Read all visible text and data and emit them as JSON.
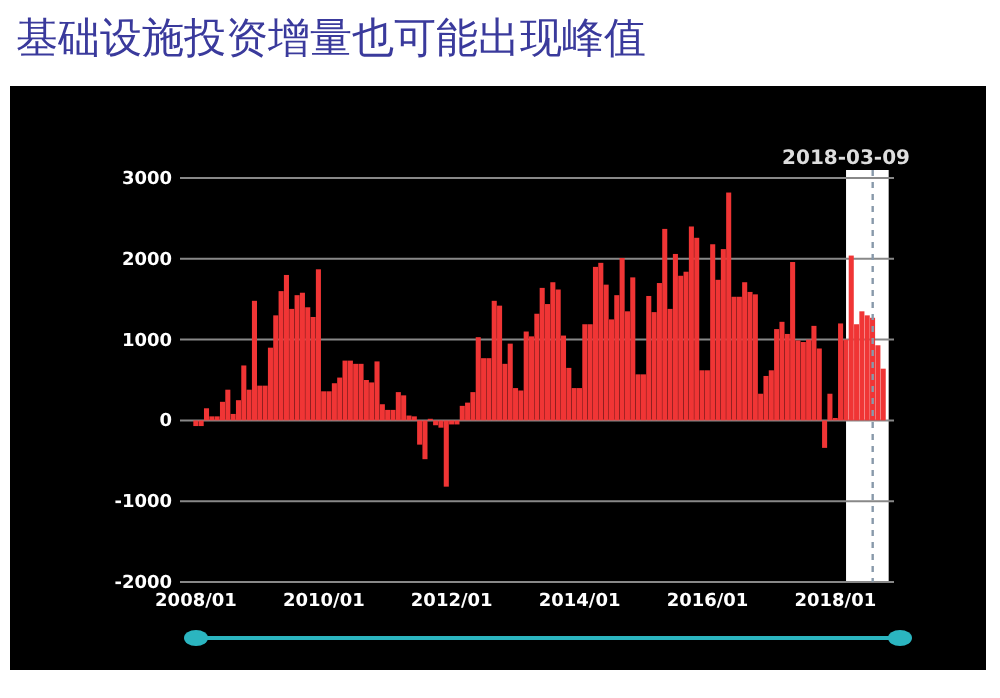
{
  "chart_data": {
    "type": "bar",
    "title": "基础设施投资增量也可能出现峰值",
    "x": [
      "2008-01",
      "2008-02",
      "2008-03",
      "2008-04",
      "2008-05",
      "2008-06",
      "2008-07",
      "2008-08",
      "2008-09",
      "2008-10",
      "2008-11",
      "2008-12",
      "2009-01",
      "2009-02",
      "2009-03",
      "2009-04",
      "2009-05",
      "2009-06",
      "2009-07",
      "2009-08",
      "2009-09",
      "2009-10",
      "2009-11",
      "2009-12",
      "2010-01",
      "2010-02",
      "2010-03",
      "2010-04",
      "2010-05",
      "2010-06",
      "2010-07",
      "2010-08",
      "2010-09",
      "2010-10",
      "2010-11",
      "2010-12",
      "2011-01",
      "2011-02",
      "2011-03",
      "2011-04",
      "2011-05",
      "2011-06",
      "2011-07",
      "2011-08",
      "2011-09",
      "2011-10",
      "2011-11",
      "2011-12",
      "2012-01",
      "2012-02",
      "2012-03",
      "2012-04",
      "2012-05",
      "2012-06",
      "2012-07",
      "2012-08",
      "2012-09",
      "2012-10",
      "2012-11",
      "2012-12",
      "2013-01",
      "2013-02",
      "2013-03",
      "2013-04",
      "2013-05",
      "2013-06",
      "2013-07",
      "2013-08",
      "2013-09",
      "2013-10",
      "2013-11",
      "2013-12",
      "2014-01",
      "2014-02",
      "2014-03",
      "2014-04",
      "2014-05",
      "2014-06",
      "2014-07",
      "2014-08",
      "2014-09",
      "2014-10",
      "2014-11",
      "2014-12",
      "2015-01",
      "2015-02",
      "2015-03",
      "2015-04",
      "2015-05",
      "2015-06",
      "2015-07",
      "2015-08",
      "2015-09",
      "2015-10",
      "2015-11",
      "2015-12",
      "2016-01",
      "2016-02",
      "2016-03",
      "2016-04",
      "2016-05",
      "2016-06",
      "2016-07",
      "2016-08",
      "2016-09",
      "2016-10",
      "2016-11",
      "2016-12",
      "2017-01",
      "2017-02",
      "2017-03",
      "2017-04",
      "2017-05",
      "2017-06",
      "2017-07",
      "2017-08",
      "2017-09",
      "2017-10",
      "2017-11",
      "2017-12",
      "2018-01",
      "2018-02",
      "2018-03",
      "2018-04",
      "2018-05",
      "2018-06",
      "2018-07",
      "2018-08",
      "2018-09",
      "2018-10"
    ],
    "values": [
      -70,
      -70,
      150,
      50,
      50,
      230,
      380,
      80,
      250,
      680,
      380,
      1480,
      430,
      430,
      900,
      1300,
      1600,
      1800,
      1380,
      1550,
      1580,
      1400,
      1280,
      1870,
      360,
      360,
      460,
      530,
      740,
      740,
      700,
      700,
      500,
      470,
      730,
      200,
      130,
      130,
      350,
      310,
      60,
      50,
      -300,
      -480,
      20,
      -60,
      -90,
      -820,
      -50,
      -50,
      180,
      220,
      350,
      1030,
      770,
      770,
      1480,
      1420,
      700,
      950,
      400,
      370,
      1100,
      1040,
      1320,
      1640,
      1440,
      1710,
      1620,
      1050,
      650,
      400,
      400,
      1190,
      1190,
      1900,
      1950,
      1680,
      1250,
      1550,
      2010,
      1350,
      1770,
      570,
      570,
      1540,
      1340,
      1700,
      2370,
      1380,
      2060,
      1790,
      1840,
      2400,
      2260,
      620,
      620,
      2180,
      1740,
      2120,
      2820,
      1530,
      1530,
      1710,
      1590,
      1560,
      330,
      550,
      620,
      1130,
      1220,
      1070,
      1960,
      990,
      970,
      1000,
      1170,
      890,
      -340,
      330,
      30,
      1200,
      1000,
      2040,
      1190,
      1350,
      1300,
      1270,
      930,
      640
    ],
    "color": "#f03535",
    "xlim": [
      "2007-10",
      "2018-12"
    ],
    "xticks": [
      {
        "value": "2008-01",
        "label": "2008/01"
      },
      {
        "value": "2010-01",
        "label": "2010/01"
      },
      {
        "value": "2012-01",
        "label": "2012/01"
      },
      {
        "value": "2014-01",
        "label": "2014/01"
      },
      {
        "value": "2016-01",
        "label": "2016/01"
      },
      {
        "value": "2018-01",
        "label": "2018/01"
      }
    ],
    "ylim": [
      -2000,
      3000
    ],
    "yticks": [
      {
        "value": -2000,
        "label": "-2000"
      },
      {
        "value": -1000,
        "label": "-1000"
      },
      0,
      1000,
      2000,
      3000
    ],
    "grid": "y",
    "bands": [
      {
        "axis": "x",
        "from": "2018-03",
        "to": "2018-11",
        "label": "2018-03-09",
        "color": "#ffffff"
      }
    ],
    "ref_lines": [
      {
        "axis": "x",
        "value": "2018-08",
        "line_style": "dashed",
        "color": "#8899aa"
      }
    ]
  }
}
